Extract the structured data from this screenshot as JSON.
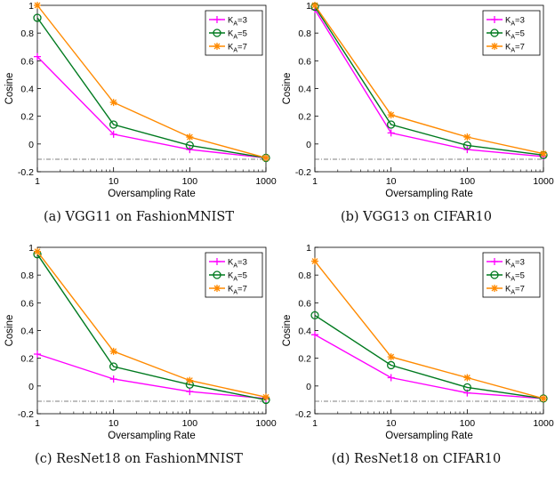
{
  "colors": {
    "k3": "#ff00ff",
    "k5": "#007a1f",
    "k7": "#ff8a00",
    "axis": "#000000",
    "reference": "#555555"
  },
  "shared": {
    "xlabel": "Oversampling Rate",
    "ylabel": "Cosine",
    "legend": [
      "K_A=3",
      "K_A=5",
      "K_A=7"
    ],
    "x": [
      1,
      10,
      100,
      1000
    ],
    "x_ticks": [
      "1",
      "10",
      "100",
      "1000"
    ],
    "y_ticks": [
      "-0.2",
      "0",
      "0.2",
      "0.4",
      "0.6",
      "0.8",
      "1"
    ]
  },
  "chart_data": [
    {
      "type": "line",
      "caption": "(a)  VGG11 on FashionMNIST",
      "xlabel": "Oversampling Rate",
      "ylabel": "Cosine",
      "xscale": "log",
      "xlim": [
        1,
        1000
      ],
      "ylim": [
        -0.2,
        1
      ],
      "legend_position": "top-right",
      "reference_line": -0.11,
      "x": [
        1,
        10,
        100,
        1000
      ],
      "series": [
        {
          "name": "K_A=3",
          "marker": "plus",
          "values": [
            0.63,
            0.07,
            -0.04,
            -0.1
          ]
        },
        {
          "name": "K_A=5",
          "marker": "circle",
          "values": [
            0.91,
            0.14,
            -0.01,
            -0.1
          ]
        },
        {
          "name": "K_A=7",
          "marker": "star",
          "values": [
            1.0,
            0.3,
            0.05,
            -0.1
          ]
        }
      ]
    },
    {
      "type": "line",
      "caption": "(b)  VGG13 on CIFAR10",
      "xlabel": "Oversampling Rate",
      "ylabel": "Cosine",
      "xscale": "log",
      "xlim": [
        1,
        1000
      ],
      "ylim": [
        -0.2,
        1
      ],
      "legend_position": "top-right",
      "reference_line": -0.11,
      "x": [
        1,
        10,
        100,
        1000
      ],
      "series": [
        {
          "name": "K_A=3",
          "marker": "plus",
          "values": [
            0.97,
            0.08,
            -0.04,
            -0.09
          ]
        },
        {
          "name": "K_A=5",
          "marker": "circle",
          "values": [
            0.99,
            0.14,
            -0.01,
            -0.08
          ]
        },
        {
          "name": "K_A=7",
          "marker": "star",
          "values": [
            1.0,
            0.21,
            0.05,
            -0.07
          ]
        }
      ]
    },
    {
      "type": "line",
      "caption": "(c)  ResNet18 on FashionMNIST",
      "xlabel": "Oversampling Rate",
      "ylabel": "Cosine",
      "xscale": "log",
      "xlim": [
        1,
        1000
      ],
      "ylim": [
        -0.2,
        1
      ],
      "legend_position": "top-right",
      "reference_line": -0.11,
      "x": [
        1,
        10,
        100,
        1000
      ],
      "series": [
        {
          "name": "K_A=3",
          "marker": "plus",
          "values": [
            0.23,
            0.05,
            -0.04,
            -0.09
          ]
        },
        {
          "name": "K_A=5",
          "marker": "circle",
          "values": [
            0.95,
            0.14,
            0.01,
            -0.1
          ]
        },
        {
          "name": "K_A=7",
          "marker": "star",
          "values": [
            0.97,
            0.25,
            0.04,
            -0.08
          ]
        }
      ]
    },
    {
      "type": "line",
      "caption": "(d)  ResNet18 on CIFAR10",
      "xlabel": "Oversampling Rate",
      "ylabel": "Cosine",
      "xscale": "log",
      "xlim": [
        1,
        1000
      ],
      "ylim": [
        -0.2,
        1
      ],
      "legend_position": "top-right",
      "reference_line": -0.11,
      "x": [
        1,
        10,
        100,
        1000
      ],
      "series": [
        {
          "name": "K_A=3",
          "marker": "plus",
          "values": [
            0.37,
            0.06,
            -0.05,
            -0.09
          ]
        },
        {
          "name": "K_A=5",
          "marker": "circle",
          "values": [
            0.51,
            0.15,
            -0.01,
            -0.09
          ]
        },
        {
          "name": "K_A=7",
          "marker": "star",
          "values": [
            0.9,
            0.21,
            0.06,
            -0.09
          ]
        }
      ]
    }
  ]
}
